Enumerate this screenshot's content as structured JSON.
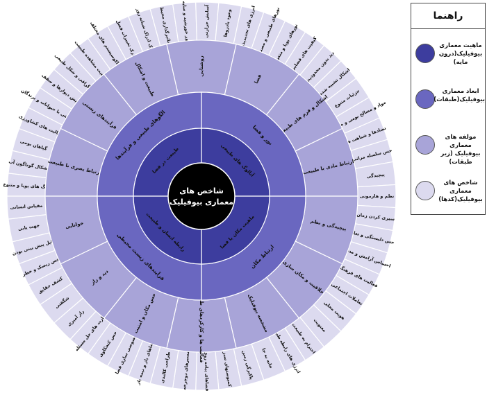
{
  "center": {
    "lines": [
      "شاخص های",
      "معماری بیوفیلیک"
    ]
  },
  "colors": {
    "center": "#000000",
    "ring1": "#3d3d9e",
    "ring2": "#6a67c0",
    "ring3": "#a8a4d8",
    "ring4": "#dcdaef",
    "line": "#ffffff"
  },
  "ring1": [
    "طبیعت در فضا",
    "آنالوگ های طبیعی",
    "ماهیت مکان یا فضا",
    "رابطه انسان و طبیعت"
  ],
  "ring2": [
    "الگوهای طبیعی و فرآیندها",
    "نور و فضا",
    "ارتباط مکان",
    "فرآیندهای زیست محیطی"
  ],
  "ring3": [
    "ارتباط بصری با طبیعت",
    "فرآیندهای زیستی",
    "طبیعت و اشکال",
    "روشنایی",
    "فضا",
    "اشکال و فرم های طبیعی",
    "ارتباط مادی با طبیعت",
    "پیچیدگی و نظم",
    "خلاقیت و مکان سازی",
    "مشخصه بیوفیلیک",
    "فعالیت ها و کارکردهای طبیعی",
    "حس مکان و امنیت",
    "دید و راز",
    "خوانایی"
  ],
  "ring4": [
    "رنگ های پویا و متنوع",
    "اشکال گوناگون آب",
    "گیاهان بومی",
    "فعالیت های کشاورزی",
    "همزیستی با حیوانات و پرندگان",
    "نمایش دیوارها و سقف",
    "توپوگرافی و شکل طبیعی",
    "قرنیت مشاهده طبیعت",
    "وجود اکوسیستم های مختلف",
    "درک تغییرات فصل",
    "درک ادراک شبانه روز",
    "تاثیرگذاری محیط",
    "نور خورشید و سایه",
    "آسایش حرارتی",
    "وجود بادروها",
    "انرژی های تجدیدپذیر",
    "نورهای طبیعی و مصنوعی",
    "نورهای پویا و متغیر",
    "کیفیت های فضایی",
    "دید بدون محدودیت",
    "اشکال تشبیه شده",
    "جزئیات متنوع",
    "مواد و مصالح بومی و طبیعی",
    "تضادها و شباهت ها",
    "حس سلسله مراتب",
    "پیچیدگی",
    "نظم و هارمونی",
    "سپری کردن زمان",
    "حس دلبستگی و تعلق",
    "احساس آرامش و مدنیت",
    "فعالیت های فرهنگی",
    "تعاملات اجتماعی",
    "هویت محلی",
    "معنویت",
    "احترام به طبیعت",
    "انرژی های رابطه طبیعی",
    "خانه به جا",
    "پاکیزگی زمین",
    "کمپوستهای سبز",
    "فضاهای پیاده روی",
    "مسیرهای دوچرخه",
    "طراحی کالبدی",
    "فضاهای باز و نیمه باز",
    "خصوصی سازی فضا",
    "حس کنجکاوی",
    "عبارت های حل مسئله",
    "راز آمیزی",
    "شگفتی",
    "کشف حقایق",
    "حس ریسک و خطر",
    "قابل پیش بینی بودن",
    "جهت یابی",
    "مقیاس انسانی"
  ],
  "legend": {
    "title": "راهنما",
    "items": [
      {
        "text": "ماهیت معماری\nبیوفیلیک(درون مایه)",
        "color": "#3d3d9e"
      },
      {
        "text": "ابعاد معماری\nبیوفیلیک(طبقات)",
        "color": "#6a67c0"
      },
      {
        "text": "مولفه های معماری\nبیوفیلیک (زیر طبقات)",
        "color": "#a8a4d8"
      },
      {
        "text": "شاخص های معماری\nبیوفیلیک(کدها)",
        "color": "#dcdaef"
      }
    ]
  }
}
